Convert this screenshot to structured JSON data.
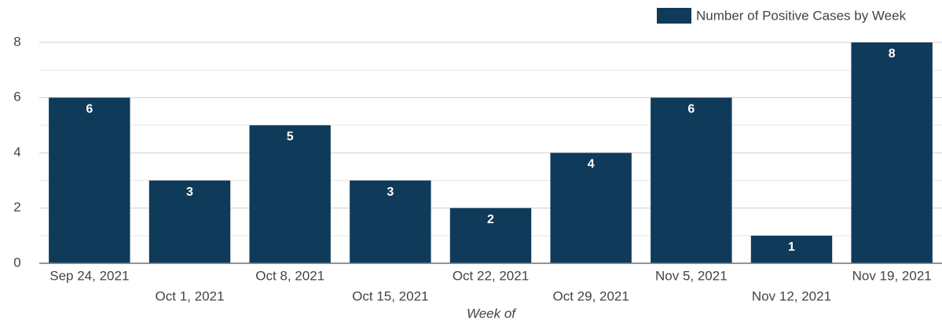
{
  "chart_data": {
    "type": "bar",
    "categories": [
      "Sep 24, 2021",
      "Oct 1, 2021",
      "Oct 8, 2021",
      "Oct 15, 2021",
      "Oct 22, 2021",
      "Oct 29, 2021",
      "Nov 5, 2021",
      "Nov 12, 2021",
      "Nov 19, 2021"
    ],
    "series": [
      {
        "name": "Number of Positive Cases by Week",
        "color": "#0f3a5a",
        "values": [
          6,
          3,
          5,
          3,
          2,
          4,
          6,
          1,
          8
        ]
      }
    ],
    "x_label": "Week of",
    "ylim": [
      0,
      8
    ],
    "yticks": [
      0,
      2,
      4,
      6,
      8
    ],
    "yminorticks": [
      1,
      3,
      5,
      7
    ],
    "grid": true,
    "legend": "top-right",
    "data_labels": true
  }
}
